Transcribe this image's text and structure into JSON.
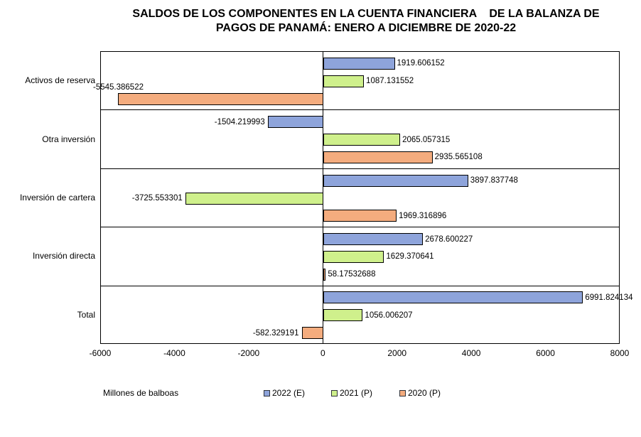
{
  "title": {
    "line1": "SALDOS DE LOS COMPONENTES EN LA CUENTA FINANCIERA    DE LA BALANZA DE",
    "line2": "PAGOS DE PANAMÁ: ENERO A DICIEMBRE DE 2020-22"
  },
  "chart_data": {
    "type": "bar",
    "orientation": "horizontal",
    "title": "SALDOS DE LOS COMPONENTES EN LA CUENTA FINANCIERA DE LA BALANZA DE PAGOS DE PANAMÁ: ENERO A DICIEMBRE DE 2020-22",
    "categories": [
      "Activos de reserva",
      "Otra inversión",
      "Inversión de cartera",
      "Inversión directa",
      "Total"
    ],
    "series": [
      {
        "name": "2022 (E)",
        "color": "#8EA4DB",
        "values": [
          1919.606152,
          -1504.219993,
          3897.837748,
          2678.600227,
          6991.824134
        ],
        "labels": [
          "1919.606152",
          "-1504.219993",
          "3897.837748",
          "2678.600227",
          "6991.824134"
        ]
      },
      {
        "name": "2021 (P)",
        "color": "#CFF08C",
        "values": [
          1087.131552,
          2065.057315,
          -3725.553301,
          1629.370641,
          1056.006207
        ],
        "labels": [
          "1087.131552",
          "2065.057315",
          "-3725.553301",
          "1629.370641",
          "1056.006207"
        ]
      },
      {
        "name": "2020 (P)",
        "color": "#F4AC7E",
        "values": [
          -5545.386522,
          2935.565108,
          1969.316896,
          58.17532688,
          -582.329191
        ],
        "labels": [
          "-5545.386522",
          "2935.565108",
          "1969.316896",
          "58.17532688",
          "-582.329191"
        ]
      }
    ],
    "xlabel": "Millones de balboas",
    "x_ticks": [
      "-6000",
      "-4000",
      "-2000",
      "0",
      "2000",
      "4000",
      "6000",
      "8000"
    ],
    "xlim": [
      -6000,
      8000
    ],
    "bar_border_color": "#000000",
    "zero_line": true,
    "category_separators": true,
    "legend_position": "bottom",
    "value_labels": "outside-end"
  }
}
